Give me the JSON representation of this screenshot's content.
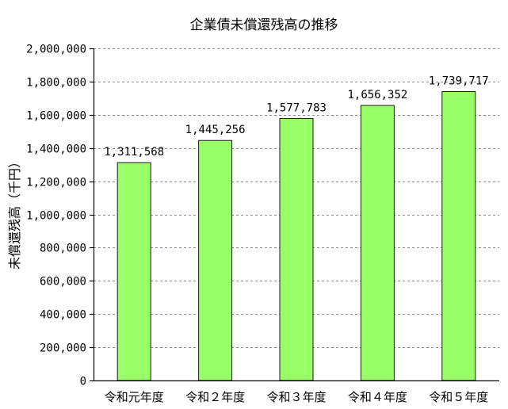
{
  "chart_data": {
    "type": "bar",
    "title": "企業債未償還残高の推移",
    "xlabel": "",
    "ylabel": "未償還残高（千円）",
    "categories": [
      "令和元年度",
      "令和２年度",
      "令和３年度",
      "令和４年度",
      "令和５年度"
    ],
    "values": [
      1311568,
      1445256,
      1577783,
      1656352,
      1739717
    ],
    "data_labels": [
      "1,311,568",
      "1,445,256",
      "1,577,783",
      "1,656,352",
      "1,739,717"
    ],
    "ylim": [
      0,
      2000000
    ],
    "yticks": [
      0,
      200000,
      400000,
      600000,
      800000,
      1000000,
      1200000,
      1400000,
      1600000,
      1800000,
      2000000
    ],
    "ytick_labels": [
      "0",
      "200,000",
      "400,000",
      "600,000",
      "800,000",
      "1,000,000",
      "1,200,000",
      "1,400,000",
      "1,600,000",
      "1,800,000",
      "2,000,000"
    ],
    "grid": true,
    "legend": "none",
    "bar_color": "#99ff66",
    "bar_edge_color": "#1a1a1a",
    "grid_color": "#8c8c8c"
  }
}
